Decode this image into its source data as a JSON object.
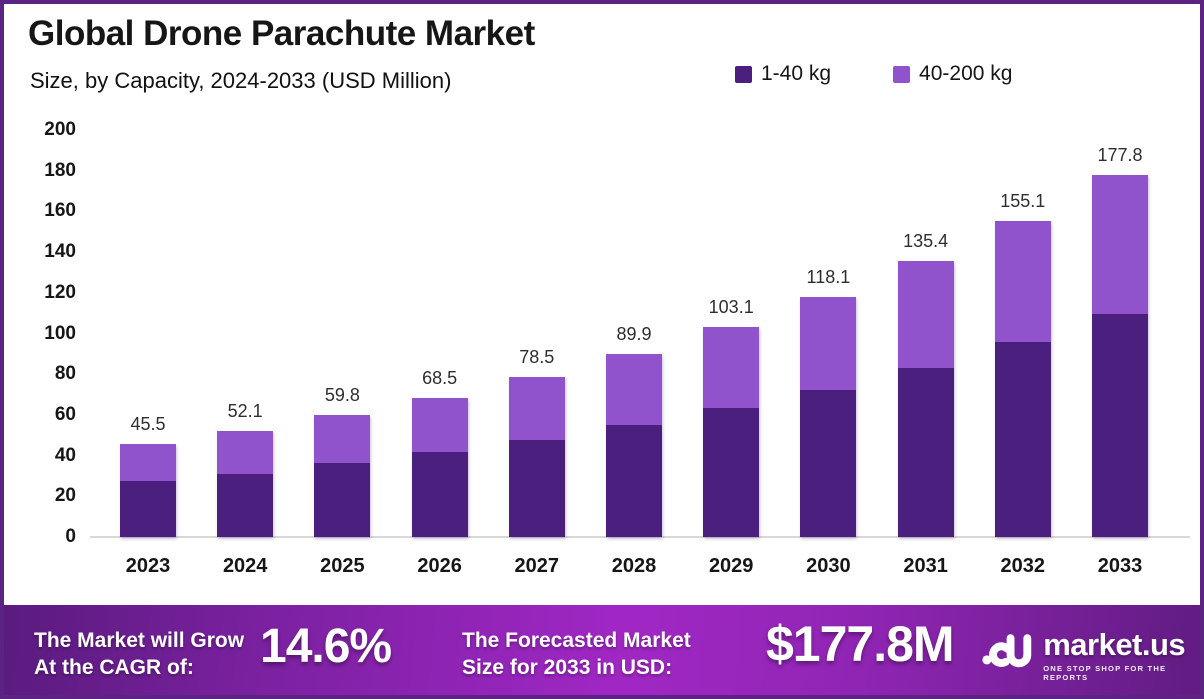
{
  "header": {
    "title": "Global Drone Parachute Market",
    "subtitle": "Size, by Capacity, 2024-2033 (USD Million)"
  },
  "legend": [
    {
      "label": "1-40 kg",
      "color": "#4A1F7E"
    },
    {
      "label": "40-200 kg",
      "color": "#9153CC"
    }
  ],
  "chart_data": {
    "type": "bar",
    "stacked": true,
    "title": "Global Drone Parachute Market Size, by Capacity, 2024-2033 (USD Million)",
    "categories": [
      "2023",
      "2024",
      "2025",
      "2026",
      "2027",
      "2028",
      "2029",
      "2030",
      "2031",
      "2032",
      "2033"
    ],
    "series": [
      {
        "name": "1-40 kg",
        "color": "#4A1F7E",
        "values": [
          27.3,
          31.2,
          36.2,
          41.9,
          47.8,
          54.8,
          63.2,
          72.2,
          82.8,
          95.7,
          109.8
        ]
      },
      {
        "name": "40-200 kg",
        "color": "#9153CC",
        "values": [
          18.2,
          20.9,
          23.6,
          26.6,
          30.7,
          35.1,
          39.9,
          45.9,
          52.6,
          59.4,
          68.0
        ]
      }
    ],
    "totals": [
      45.5,
      52.1,
      59.8,
      68.5,
      78.5,
      89.9,
      103.1,
      118.1,
      135.4,
      155.1,
      177.8
    ],
    "total_labels": [
      "45.5",
      "52.1",
      "59.8",
      "68.5",
      "78.5",
      "89.9",
      "103.1",
      "118.1",
      "135.4",
      "155.1",
      "177.8"
    ],
    "xlabel": "",
    "ylabel": "",
    "ylim": [
      0,
      200
    ],
    "yticks": [
      0,
      20,
      40,
      60,
      80,
      100,
      120,
      140,
      160,
      180,
      200
    ],
    "grid": false,
    "legend_position": "top-right"
  },
  "footer": {
    "cagr_label_line1": "The Market will Grow",
    "cagr_label_line2": "At the CAGR of:",
    "cagr_value": "14.6%",
    "forecast_label_line1": "The Forecasted Market",
    "forecast_label_line2": "Size for 2033 in USD:",
    "forecast_value": "$177.8M",
    "brand_name": "market.us",
    "brand_tagline": "ONE STOP SHOP FOR THE REPORTS"
  },
  "colors": {
    "frame_border": "#5b2483",
    "series_dark": "#4A1F7E",
    "series_light": "#9153CC",
    "axis_line": "#d8d8d8",
    "footer_gradient_start": "#5a1b7e",
    "footer_gradient_mid": "#a127c5",
    "footer_gradient_end": "#611c82",
    "text_dark": "#161616",
    "footer_text": "#ffffff"
  }
}
